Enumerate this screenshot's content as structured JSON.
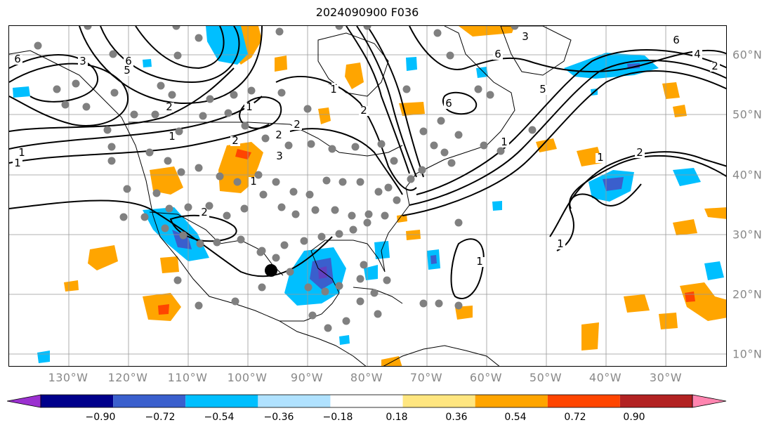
{
  "title": "2024090900 F036",
  "lon_labels": [
    "130°W",
    "120°W",
    "110°W",
    "100°W",
    "90°W",
    "80°W",
    "70°W",
    "60°W",
    "50°W",
    "40°W",
    "30°W"
  ],
  "lat_labels": [
    "60°N",
    "50°N",
    "40°N",
    "30°N",
    "20°N",
    "10°N"
  ],
  "colorbar": {
    "tick_labels": [
      "−0.90",
      "−0.72",
      "−0.54",
      "−0.36",
      "−0.18",
      "0.18",
      "0.36",
      "0.54",
      "0.72",
      "0.90"
    ],
    "colors": [
      "#9b30d0",
      "#00008b",
      "#3a5fcd",
      "#00bfff",
      "#b0e2ff",
      "#ffffff",
      "#ffe680",
      "#ffa500",
      "#ff4500",
      "#b22222",
      "#ff85b0"
    ]
  },
  "contour_labels": [
    "6",
    "3",
    "6",
    "5",
    "1",
    "2",
    "1",
    "2",
    "3",
    "1",
    "2",
    "2",
    "1",
    "2",
    "6",
    "3",
    "6",
    "1",
    "1",
    "5",
    "6",
    "4",
    "2",
    "1",
    "2",
    "1",
    "1",
    "2",
    "1",
    "1"
  ],
  "shading_colors": {
    "positive_light": "#ffa500",
    "positive_strong": "#ff4500",
    "negative_light": "#00bfff",
    "negative_strong": "#3a5fcd",
    "negative_deep": "#6040c0"
  },
  "marker_colors": {
    "stations": "#808080",
    "highlight": "#000000"
  }
}
